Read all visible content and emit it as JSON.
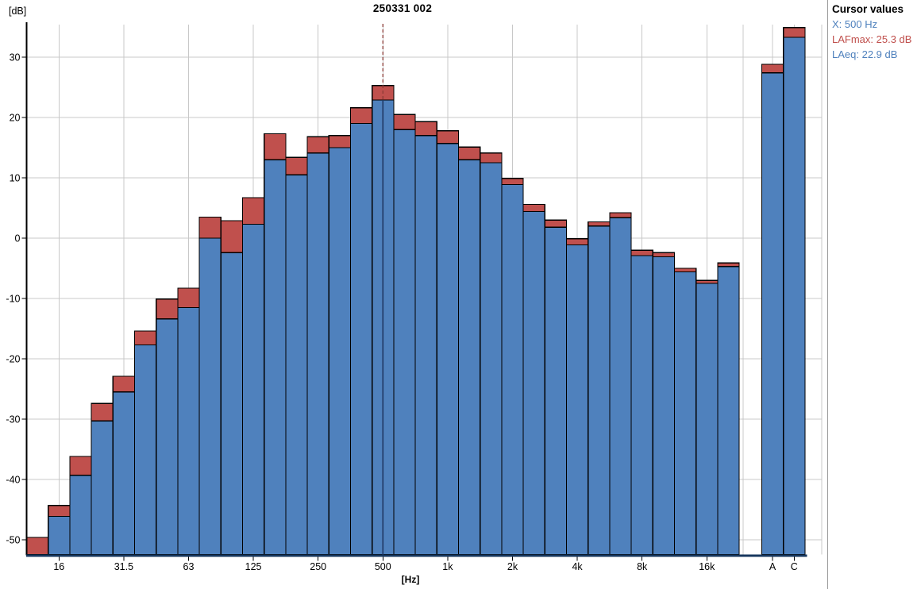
{
  "header": {
    "title": "250331 002"
  },
  "cursor_panel": {
    "title": "Cursor values",
    "x_label": "X: 500 Hz",
    "lafmax_label": "LAFmax: 25.3 dB",
    "laeq_label": "LAeq: 22.9 dB"
  },
  "colors": {
    "laeq_bar": "#4f81bd",
    "lafmax_bar": "#c0504d",
    "bar_outline": "#000000",
    "grid": "#c8c8c8",
    "axis_x_line": "#17375e",
    "axis_y_line": "#000000",
    "cursor_dashed_line": "#8b3a36",
    "cursor_in_bar_line": "#1f3864",
    "panel_text_blue": "#4f81bd",
    "panel_text_red": "#c0504d"
  },
  "chart_data": {
    "type": "bar",
    "title": "250331 002",
    "ylabel": "[dB]",
    "xlabel": "[Hz]",
    "ylim": [
      -52.5,
      35.5
    ],
    "grid": true,
    "yticks": [
      30,
      20,
      10,
      0,
      -10,
      -20,
      -30,
      -40,
      -50
    ],
    "categories": [
      "12.5",
      "16",
      "20",
      "25",
      "31.5",
      "40",
      "50",
      "63",
      "80",
      "100",
      "125",
      "160",
      "200",
      "250",
      "315",
      "400",
      "500",
      "630",
      "800",
      "1k",
      "1.25k",
      "1.6k",
      "2k",
      "2.5k",
      "3.15k",
      "4k",
      "5k",
      "6.3k",
      "8k",
      "10k",
      "12.5k",
      "16k",
      "20k"
    ],
    "xtick_indices": [
      1,
      4,
      7,
      10,
      13,
      16,
      19,
      22,
      25,
      28,
      31
    ],
    "xtick_labels": [
      "16",
      "31.5",
      "63",
      "125",
      "250",
      "500",
      "1k",
      "2k",
      "4k",
      "8k",
      "16k"
    ],
    "series": [
      {
        "name": "LAFmax",
        "color": "#c0504d",
        "values": [
          -49.6,
          -44.3,
          -36.2,
          -27.4,
          -22.9,
          -15.4,
          -10.1,
          -8.3,
          3.5,
          2.9,
          6.7,
          17.3,
          13.4,
          16.8,
          17.0,
          21.6,
          25.3,
          20.5,
          19.3,
          17.8,
          15.1,
          14.1,
          9.9,
          5.6,
          3.0,
          -0.1,
          2.7,
          4.2,
          -2.0,
          -2.4,
          -5.0,
          -7.0,
          -4.1
        ]
      },
      {
        "name": "LAeq",
        "color": "#4f81bd",
        "values": [
          null,
          -46.1,
          -39.3,
          -30.3,
          -25.5,
          -17.7,
          -13.4,
          -11.5,
          0.0,
          -2.4,
          2.3,
          13.0,
          10.5,
          14.1,
          15.0,
          19.0,
          22.9,
          18.0,
          17.0,
          15.7,
          13.0,
          12.5,
          8.9,
          4.4,
          1.8,
          -1.1,
          2.0,
          3.4,
          -2.9,
          -3.1,
          -5.6,
          -7.5,
          -4.7
        ]
      }
    ],
    "totals": {
      "categories": [
        "A",
        "C"
      ],
      "lafmax": [
        28.8,
        34.9
      ],
      "laeq": [
        27.4,
        33.3
      ]
    },
    "cursor": {
      "category": "500",
      "lafmax": 25.3,
      "laeq": 22.9
    },
    "legend": null
  }
}
